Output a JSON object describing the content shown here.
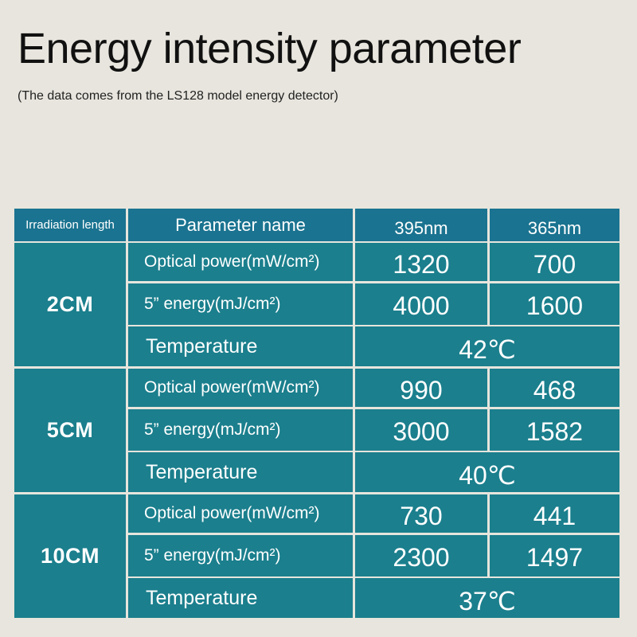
{
  "header": {
    "title": "Energy intensity parameter",
    "subtitle": "(The data comes from the LS128 model energy detector)"
  },
  "table": {
    "headers": [
      "Irradiation length",
      "Parameter name",
      "395nm",
      "365nm"
    ],
    "groups": [
      {
        "label": "2CM",
        "rows": [
          [
            "Optical power(mW/cm²)",
            1320,
            700
          ],
          [
            "5” energy(mJ/cm²)",
            4000,
            1600
          ],
          [
            "Temperature",
            "42℃"
          ]
        ]
      },
      {
        "label": "5CM",
        "rows": [
          [
            "Optical power(mW/cm²)",
            990,
            468
          ],
          [
            "5” energy(mJ/cm²)",
            3000,
            1582
          ],
          [
            "Temperature",
            "40℃"
          ]
        ]
      },
      {
        "label": "10CM",
        "rows": [
          [
            "Optical power(mW/cm²)",
            730,
            441
          ],
          [
            "5” energy(mJ/cm²)",
            2300,
            1497
          ],
          [
            "Temperature",
            "37℃"
          ]
        ]
      }
    ]
  }
}
